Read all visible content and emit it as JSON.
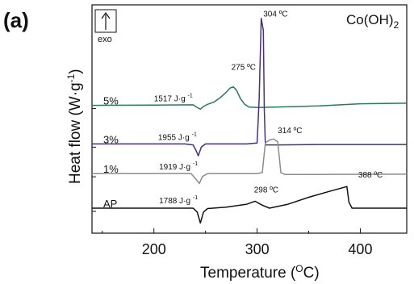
{
  "chart_data": {
    "type": "line",
    "panel_label": "(a)",
    "compound": {
      "base": "Co(OH)",
      "sub": "2"
    },
    "exo_label": "exo",
    "xlabel": {
      "base": "Temperature (",
      "sup": "O",
      "tail": "C)"
    },
    "ylabel": {
      "base": "Heat flow (W·g",
      "sup": "-1",
      "tail": ")"
    },
    "xlim": [
      140,
      445
    ],
    "xticks": [
      200,
      300,
      400
    ],
    "grid": false,
    "series": [
      {
        "name": "5%",
        "color": "#2a7a5a",
        "baseline": 5.2,
        "scale": 0.55,
        "enthalpy_label": "1517 J·g",
        "enthalpy_at": [
          200,
          5.4
        ],
        "peak_labels": [
          {
            "text": "275 ºC",
            "x": 275,
            "y": 7.0
          }
        ],
        "points": [
          [
            140,
            5.2
          ],
          [
            200,
            5.22
          ],
          [
            238,
            5.25
          ],
          [
            242,
            5.0
          ],
          [
            245,
            4.85
          ],
          [
            248,
            5.1
          ],
          [
            252,
            5.3
          ],
          [
            258,
            5.5
          ],
          [
            264,
            5.9
          ],
          [
            270,
            6.4
          ],
          [
            274,
            6.8
          ],
          [
            277,
            6.9
          ],
          [
            280,
            6.6
          ],
          [
            284,
            5.8
          ],
          [
            288,
            5.3
          ],
          [
            292,
            5.05
          ],
          [
            300,
            5.0
          ],
          [
            320,
            5.05
          ],
          [
            360,
            5.15
          ],
          [
            400,
            5.35
          ],
          [
            445,
            5.4
          ]
        ]
      },
      {
        "name": "3%",
        "color": "#4a2f7a",
        "baseline": 3.25,
        "scale": 1.0,
        "enthalpy_label": "1955 J·g",
        "enthalpy_at": [
          204,
          3.45
        ],
        "peak_labels": [
          {
            "text": "304 ºC",
            "x": 306,
            "y": 9.7
          }
        ],
        "points": [
          [
            140,
            3.25
          ],
          [
            230,
            3.25
          ],
          [
            238,
            3.2
          ],
          [
            241,
            2.9
          ],
          [
            243,
            2.65
          ],
          [
            246,
            3.1
          ],
          [
            250,
            3.25
          ],
          [
            290,
            3.25
          ],
          [
            300,
            3.3
          ],
          [
            302,
            5.5
          ],
          [
            304,
            9.6
          ],
          [
            306,
            9.0
          ],
          [
            307,
            5.0
          ],
          [
            308,
            3.2
          ],
          [
            320,
            3.2
          ],
          [
            360,
            3.22
          ],
          [
            445,
            3.22
          ]
        ]
      },
      {
        "name": "1%",
        "color": "#8c8c8c",
        "baseline": 1.75,
        "scale": 1.0,
        "enthalpy_label": "1919 J·g",
        "enthalpy_at": [
          205,
          1.95
        ],
        "peak_labels": [
          {
            "text": "314 ºC",
            "x": 320,
            "y": 3.8
          }
        ],
        "points": [
          [
            140,
            1.75
          ],
          [
            236,
            1.75
          ],
          [
            241,
            1.45
          ],
          [
            244,
            1.25
          ],
          [
            247,
            1.6
          ],
          [
            252,
            1.75
          ],
          [
            300,
            1.75
          ],
          [
            305,
            1.8
          ],
          [
            308,
            3.3
          ],
          [
            312,
            3.45
          ],
          [
            316,
            3.5
          ],
          [
            320,
            3.35
          ],
          [
            323,
            1.8
          ],
          [
            327,
            1.7
          ],
          [
            445,
            1.72
          ]
        ]
      },
      {
        "name": "AP",
        "color": "#111111",
        "baseline": 0.0,
        "scale": 1.0,
        "enthalpy_label": "1788 J·g",
        "enthalpy_at": [
          205,
          0.25
        ],
        "peak_labels": [
          {
            "text": "298 ºC",
            "x": 297,
            "y": 0.8
          },
          {
            "text": "388 ºC",
            "x": 398,
            "y": 1.55
          }
        ],
        "points": [
          [
            140,
            0.0
          ],
          [
            238,
            0.0
          ],
          [
            242,
            -0.2
          ],
          [
            245,
            -0.75
          ],
          [
            248,
            -0.2
          ],
          [
            252,
            -0.02
          ],
          [
            270,
            0.05
          ],
          [
            290,
            0.2
          ],
          [
            298,
            0.35
          ],
          [
            305,
            0.15
          ],
          [
            312,
            0.0
          ],
          [
            330,
            0.2
          ],
          [
            350,
            0.55
          ],
          [
            370,
            0.85
          ],
          [
            384,
            1.05
          ],
          [
            387,
            1.1
          ],
          [
            389,
            0.3
          ],
          [
            392,
            0.0
          ],
          [
            445,
            0.0
          ]
        ]
      }
    ]
  }
}
